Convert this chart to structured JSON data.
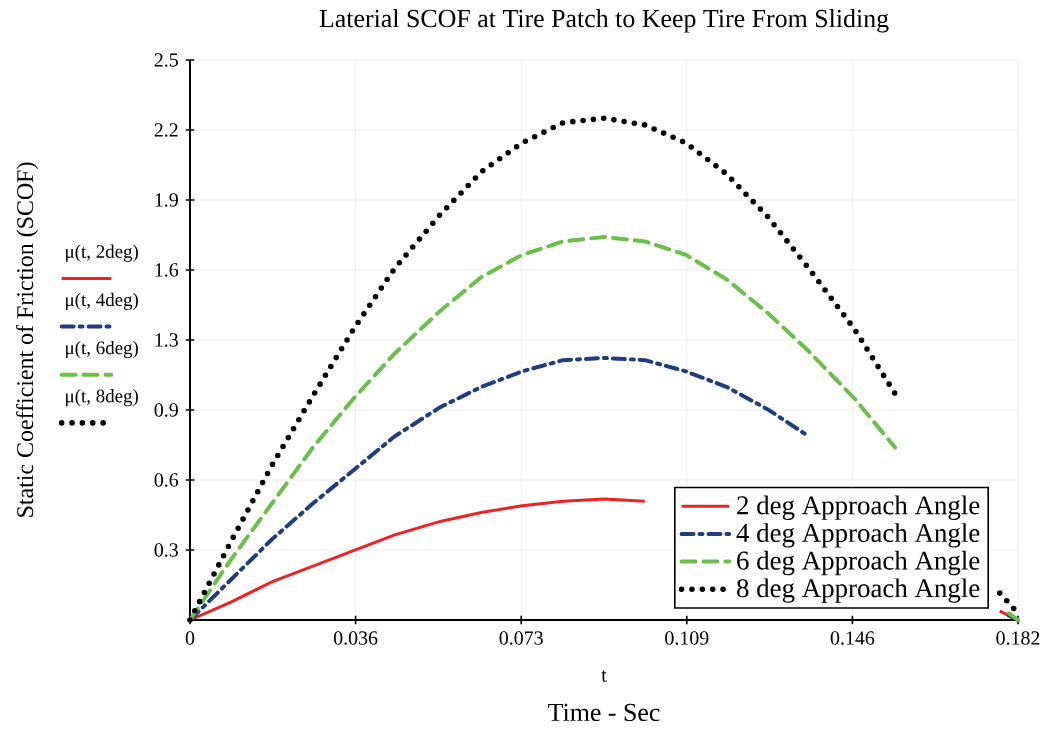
{
  "chart_data": {
    "type": "line",
    "title": "Laterial SCOF at Tire Patch to Keep Tire From Sliding",
    "xlabel": "t",
    "ylabel": "Static Coefficient of Friction (SCOF)",
    "annotations": [
      "Time - Sec",
      "μ(t, 2deg)",
      "μ(t, 4deg)",
      "μ(t, 6deg)",
      "μ(t, 8deg)"
    ],
    "xlim": [
      0,
      0.182
    ],
    "ylim": [
      0,
      2.5
    ],
    "xticks": [
      0,
      {
        "value": 0.0364,
        "label": "0.036"
      },
      {
        "value": 0.0728,
        "label": "0.073"
      },
      {
        "value": 0.1092,
        "label": "0.109"
      },
      {
        "value": 0.1456,
        "label": "0.146"
      },
      0.182
    ],
    "yticks": [
      {
        "value": 0.3125,
        "label": "0.3"
      },
      {
        "value": 0.625,
        "label": "0.6"
      },
      {
        "value": 0.9375,
        "label": "0.9"
      },
      {
        "value": 1.25,
        "label": "1.3"
      },
      {
        "value": 1.5625,
        "label": "1.6"
      },
      {
        "value": 1.875,
        "label": "1.9"
      },
      {
        "value": 2.1875,
        "label": "2.2"
      },
      2.5
    ],
    "grid": true,
    "legend": "bottom right",
    "marker": "none",
    "series": [
      {
        "name": "2 deg Approach Angle",
        "color": "#ee2222",
        "line_style": "solid",
        "x": [
          0,
          0.009,
          0.018,
          0.027,
          0.036,
          0.045,
          0.055,
          0.064,
          0.073,
          0.082,
          0.091,
          0.1,
          0.109,
          0.173,
          0.178,
          0.182
        ],
        "values": [
          0,
          0.08,
          0.17,
          0.24,
          0.31,
          0.38,
          0.44,
          0.48,
          0.51,
          0.53,
          0.54,
          0.53,
          null,
          null,
          0.04,
          0
        ]
      },
      {
        "name": "4 deg Approach Angle",
        "color": "#1f3d7a",
        "line_style": "dashdot",
        "x": [
          0,
          0.009,
          0.018,
          0.027,
          0.036,
          0.045,
          0.055,
          0.064,
          0.073,
          0.082,
          0.091,
          0.1,
          0.109,
          0.118,
          0.127,
          0.136,
          0.146,
          0.173,
          0.18,
          0.182
        ],
        "values": [
          0,
          0.18,
          0.36,
          0.52,
          0.67,
          0.82,
          0.95,
          1.04,
          1.11,
          1.16,
          1.17,
          1.16,
          1.11,
          1.04,
          0.94,
          0.82,
          null,
          null,
          0.02,
          0
        ]
      },
      {
        "name": "6 deg Approach Angle",
        "color": "#6abf4b",
        "line_style": "dashed",
        "x": [
          0,
          0.009,
          0.018,
          0.027,
          0.036,
          0.045,
          0.055,
          0.064,
          0.073,
          0.082,
          0.091,
          0.1,
          0.109,
          0.118,
          0.127,
          0.136,
          0.146,
          0.155,
          0.164,
          0.173,
          0.18,
          0.182
        ],
        "values": [
          0,
          0.27,
          0.52,
          0.77,
          0.99,
          1.19,
          1.38,
          1.53,
          1.63,
          1.69,
          1.71,
          1.69,
          1.63,
          1.52,
          1.37,
          1.2,
          0.99,
          0.77,
          null,
          null,
          0.03,
          0
        ]
      },
      {
        "name": "8 deg Approach Angle",
        "color": "#000000",
        "line_style": "dotted",
        "x": [
          0,
          0.009,
          0.018,
          0.027,
          0.036,
          0.045,
          0.055,
          0.064,
          0.073,
          0.082,
          0.091,
          0.1,
          0.109,
          0.118,
          0.127,
          0.136,
          0.146,
          0.155,
          0.164,
          0.173,
          0.178,
          0.182
        ],
        "values": [
          0,
          0.35,
          0.69,
          1.0,
          1.3,
          1.57,
          1.81,
          2.0,
          2.13,
          2.22,
          2.24,
          2.21,
          2.13,
          1.99,
          1.8,
          1.57,
          1.3,
          1.01,
          null,
          null,
          0.12,
          0.03
        ]
      }
    ]
  }
}
